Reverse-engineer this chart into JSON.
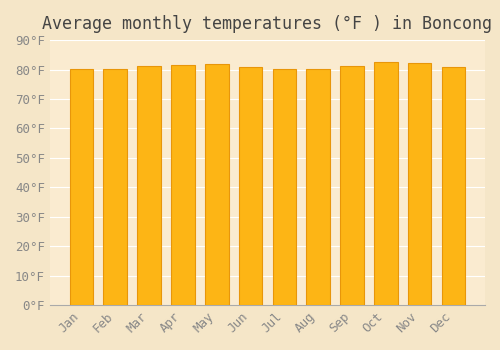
{
  "title": "Average monthly temperatures (°F ) in Boncong",
  "months": [
    "Jan",
    "Feb",
    "Mar",
    "Apr",
    "May",
    "Jun",
    "Jul",
    "Aug",
    "Sep",
    "Oct",
    "Nov",
    "Dec"
  ],
  "values": [
    80.1,
    80.1,
    81.1,
    81.5,
    82.0,
    81.0,
    80.1,
    80.3,
    81.3,
    82.6,
    82.3,
    80.8
  ],
  "bar_color_main": "#FDB515",
  "bar_color_edge": "#E8960A",
  "background_color": "#F5E6C8",
  "plot_bg_color": "#FAEBD0",
  "grid_color": "#FFFFFF",
  "text_color": "#888888",
  "ylim": [
    0,
    90
  ],
  "yticks": [
    0,
    10,
    20,
    30,
    40,
    50,
    60,
    70,
    80,
    90
  ],
  "ytick_labels": [
    "0°F",
    "10°F",
    "20°F",
    "30°F",
    "40°F",
    "50°F",
    "60°F",
    "70°F",
    "80°F",
    "90°F"
  ],
  "title_fontsize": 12,
  "tick_fontsize": 9,
  "figsize": [
    5.0,
    3.5
  ],
  "dpi": 100
}
